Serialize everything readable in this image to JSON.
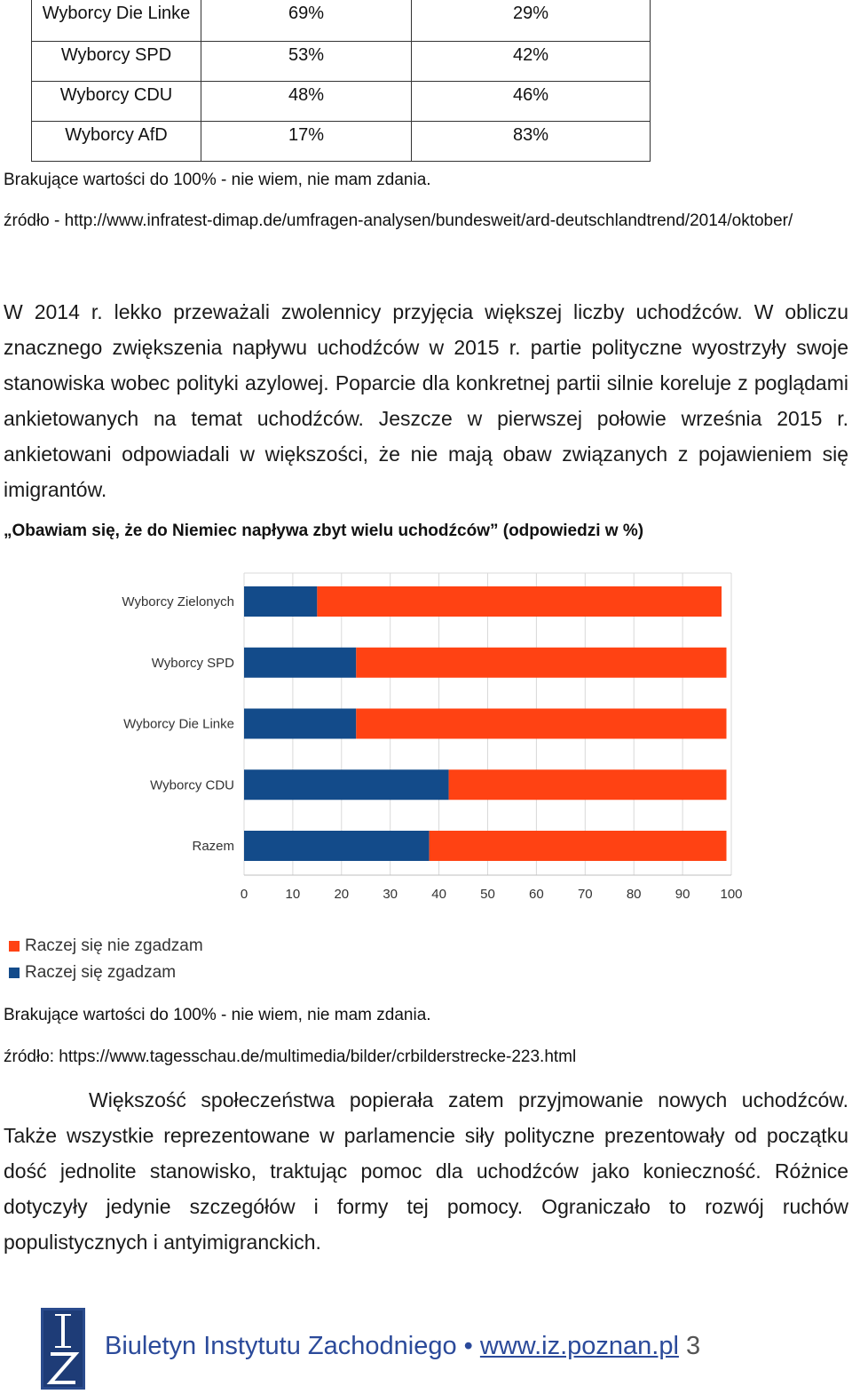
{
  "table": {
    "rows": [
      [
        "Wyborcy Die Linke",
        "69%",
        "29%"
      ],
      [
        "Wyborcy SPD",
        "53%",
        "42%"
      ],
      [
        "Wyborcy CDU",
        "48%",
        "46%"
      ],
      [
        "Wyborcy AfD",
        "17%",
        "83%"
      ]
    ]
  },
  "note1": "Brakujące wartości do 100% - nie wiem, nie mam zdania.",
  "source1": "źródło - http://www.infratest-dimap.de/umfragen-analysen/bundesweit/ard-deutschlandtrend/2014/oktober/",
  "paragraph1": "W 2014 r. lekko przeważali zwolennicy przyjęcia większej liczby uchodźców. W obliczu znacznego zwiększenia napływu uchodźców w 2015 r. partie polityczne wyostrzyły swoje stanowiska wobec polityki azylowej. Poparcie dla konkretnej partii silnie koreluje z poglądami ankietowanych na temat uchodźców. Jeszcze w pierwszej połowie września 2015 r. ankietowani odpowiadali w większości, że nie mają obaw związanych z pojawieniem się imigrantów.",
  "chart_title": "„Obawiam się, że do Niemiec napływa zbyt wielu uchodźców” (odpowiedzi w %)",
  "chart_data": {
    "type": "bar",
    "orientation": "horizontal",
    "stacked": true,
    "categories": [
      "Wyborcy Zielonych",
      "Wyborcy SPD",
      "Wyborcy Die Linke",
      "Wyborcy CDU",
      "Razem"
    ],
    "series": [
      {
        "name": "Raczej się zgadzam",
        "color": "#134b8a",
        "values": [
          15,
          23,
          23,
          42,
          38
        ]
      },
      {
        "name": "Raczej się nie zgadzam",
        "color": "#ff4213",
        "values": [
          83,
          76,
          76,
          57,
          61
        ]
      }
    ],
    "xlim": [
      0,
      100
    ],
    "xticks": [
      0,
      10,
      20,
      30,
      40,
      50,
      60,
      70,
      80,
      90,
      100
    ],
    "grid": true,
    "legend_position": "bottom-left"
  },
  "legend": [
    {
      "label": "Raczej się nie zgadzam",
      "color": "#ff4213"
    },
    {
      "label": "Raczej się zgadzam",
      "color": "#134b8a"
    }
  ],
  "note2": "Brakujące wartości do 100% - nie wiem, nie mam zdania.",
  "source2": "źródło: https://www.tagesschau.de/multimedia/bilder/crbilderstrecke-223.html",
  "paragraph2": "Większość społeczeństwa popierała zatem przyjmowanie nowych uchodźców. Także wszystkie reprezentowane w parlamencie siły polityczne prezentowały od początku dość jednolite stanowisko, traktując pomoc dla uchodźców jako konieczność. Różnice dotyczyły jedynie szczegółów i formy tej pomocy. Ograniczało to rozwój ruchów populistycznych i antyimigranckich.",
  "footer": {
    "title": "Biuletyn Instytutu Zachodniego",
    "separator": "•",
    "link": "www.iz.poznan.pl",
    "page": "3",
    "logo_text": "IZ"
  }
}
